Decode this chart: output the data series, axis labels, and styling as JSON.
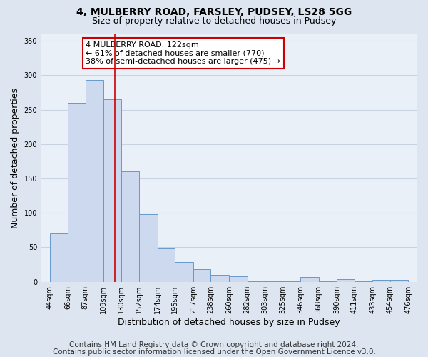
{
  "title": "4, MULBERRY ROAD, FARSLEY, PUDSEY, LS28 5GG",
  "subtitle": "Size of property relative to detached houses in Pudsey",
  "xlabel": "Distribution of detached houses by size in Pudsey",
  "ylabel": "Number of detached properties",
  "bin_edges": [
    44,
    66,
    87,
    109,
    130,
    152,
    174,
    195,
    217,
    238,
    260,
    282,
    303,
    325,
    346,
    368,
    390,
    411,
    433,
    454,
    476
  ],
  "counts": [
    70,
    260,
    293,
    265,
    160,
    98,
    48,
    29,
    18,
    10,
    8,
    1,
    1,
    1,
    7,
    1,
    4,
    1,
    3,
    3
  ],
  "vline_x": 122,
  "bar_facecolor": "#ccd9ee",
  "bar_edgecolor": "#6699cc",
  "vline_color": "#cc0000",
  "annotation_text": "4 MULBERRY ROAD: 122sqm\n← 61% of detached houses are smaller (770)\n38% of semi-detached houses are larger (475) →",
  "annotation_box_edgecolor": "#cc0000",
  "ylim": [
    0,
    360
  ],
  "yticks": [
    0,
    50,
    100,
    150,
    200,
    250,
    300,
    350
  ],
  "footer_line1": "Contains HM Land Registry data © Crown copyright and database right 2024.",
  "footer_line2": "Contains public sector information licensed under the Open Government Licence v3.0.",
  "background_color": "#dde6f0",
  "plot_background_color": "#eaf0f8",
  "grid_color": "#c8d4e4",
  "title_fontsize": 10,
  "subtitle_fontsize": 9,
  "label_fontsize": 9,
  "tick_fontsize": 7,
  "footer_fontsize": 7.5
}
